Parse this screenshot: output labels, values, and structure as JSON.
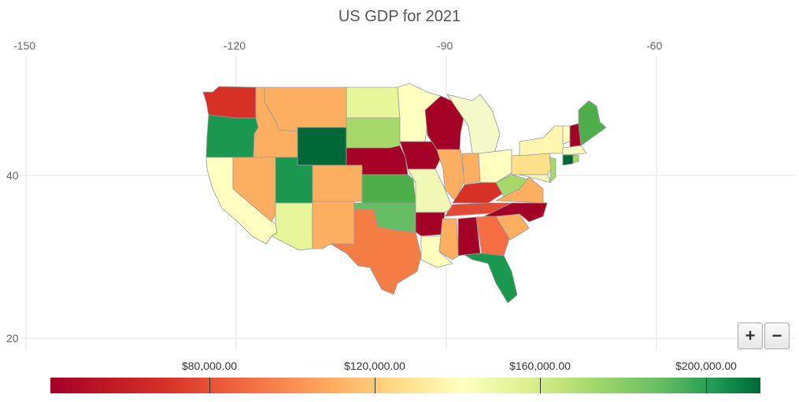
{
  "title": "US GDP for 2021",
  "axes": {
    "x_ticks": [
      "-150",
      "-120",
      "-90",
      "-60"
    ],
    "y_ticks": [
      "40",
      "20"
    ]
  },
  "legend": {
    "labels": [
      "$80,000.00",
      "$120,000.00",
      "$160,000.00",
      "$200,000.00"
    ],
    "colors": [
      "#a50026",
      "#d73027",
      "#f46d43",
      "#fdae61",
      "#fee08b",
      "#ffffbf",
      "#d9ef8b",
      "#a6d96a",
      "#66bd63",
      "#1a9850",
      "#006837"
    ]
  },
  "controls": {
    "zoom_in": "+",
    "zoom_out": "−"
  }
}
